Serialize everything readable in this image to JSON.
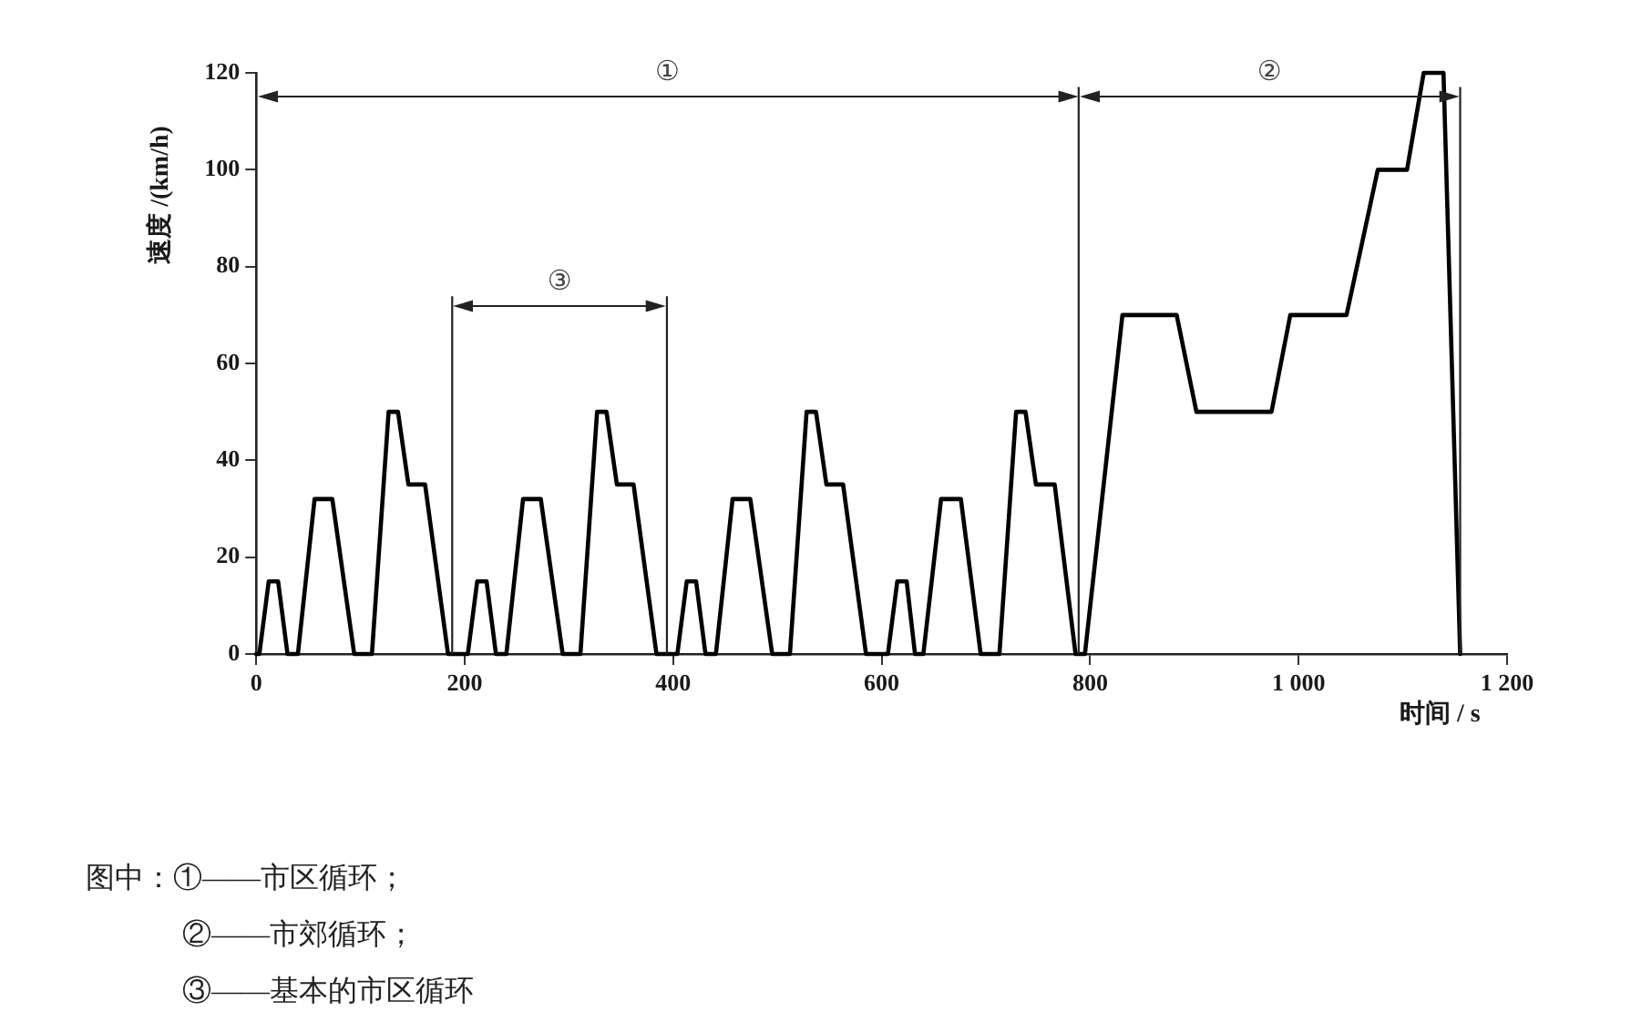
{
  "chart_data": {
    "type": "line",
    "xlabel": "时间 / s",
    "ylabel": "速度 /(km/h)",
    "x": [
      0,
      3,
      12,
      21,
      30,
      40,
      56,
      73,
      94,
      111,
      127,
      136,
      146,
      162,
      184,
      203,
      212,
      221,
      230,
      240,
      256,
      273,
      294,
      311,
      327,
      336,
      346,
      362,
      384,
      404,
      413,
      422,
      431,
      441,
      457,
      474,
      495,
      512,
      528,
      537,
      547,
      563,
      585,
      606,
      615,
      624,
      632,
      640,
      657,
      676,
      695,
      713,
      729,
      738,
      748,
      766,
      786,
      795,
      831,
      883,
      902,
      974,
      992,
      1046,
      1076,
      1104,
      1120,
      1139,
      1155
    ],
    "values": [
      0,
      0,
      15,
      15,
      0,
      0,
      32,
      32,
      0,
      0,
      50,
      50,
      35,
      35,
      0,
      0,
      15,
      15,
      0,
      0,
      32,
      32,
      0,
      0,
      50,
      50,
      35,
      35,
      0,
      0,
      15,
      15,
      0,
      0,
      32,
      32,
      0,
      0,
      50,
      50,
      35,
      35,
      0,
      0,
      15,
      15,
      0,
      0,
      32,
      32,
      0,
      0,
      50,
      50,
      35,
      35,
      0,
      0,
      70,
      70,
      50,
      50,
      70,
      70,
      100,
      100,
      120,
      120,
      0
    ],
    "color": "#000000",
    "marker": "none",
    "xlim": [
      0,
      1200
    ],
    "xticks": [
      0,
      200,
      400,
      600,
      800,
      {
        "value": 1000,
        "label": "1 000"
      },
      {
        "value": 1200,
        "label": "1 200"
      }
    ],
    "ylim": [
      0,
      120
    ],
    "yticks": [
      0,
      20,
      40,
      60,
      80,
      100,
      120
    ],
    "ref_lines": [
      {
        "axis": "x",
        "value": 188
      },
      {
        "axis": "x",
        "value": 394
      },
      {
        "axis": "x",
        "value": 789
      },
      {
        "axis": "x",
        "value": 1155
      }
    ],
    "annotations": [
      "①",
      "②",
      "③",
      "图中：①——市区循环；",
      "②——市郊循环；",
      "③——基本的市区循环"
    ]
  }
}
